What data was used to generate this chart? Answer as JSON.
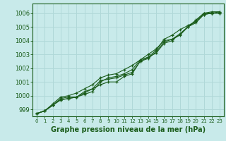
{
  "title": "Graphe pression niveau de la mer (hPa)",
  "bg_color": "#c8eaea",
  "grid_color": "#b0d8d8",
  "line_color": "#1a5c1a",
  "xlim": [
    -0.5,
    23.5
  ],
  "ylim": [
    998.5,
    1006.7
  ],
  "yticks": [
    999,
    1000,
    1001,
    1002,
    1003,
    1004,
    1005,
    1006
  ],
  "xticks": [
    0,
    1,
    2,
    3,
    4,
    5,
    6,
    7,
    8,
    9,
    10,
    11,
    12,
    13,
    14,
    15,
    16,
    17,
    18,
    19,
    20,
    21,
    22,
    23
  ],
  "series": [
    [
      998.7,
      998.9,
      999.3,
      999.8,
      999.9,
      999.9,
      1000.1,
      1000.3,
      1001.0,
      1001.3,
      1001.4,
      1001.6,
      1001.9,
      1002.6,
      1003.0,
      1003.4,
      1004.0,
      1004.1,
      1004.5,
      1005.0,
      1005.5,
      1006.0,
      1006.0,
      1006.0
    ],
    [
      998.7,
      998.9,
      999.4,
      999.9,
      1000.0,
      1000.2,
      1000.5,
      1000.8,
      1001.3,
      1001.5,
      1001.6,
      1001.9,
      1002.2,
      1002.6,
      1002.8,
      1003.3,
      1004.1,
      1004.4,
      1004.8,
      1005.1,
      1005.4,
      1006.0,
      1006.1,
      1006.1
    ],
    [
      998.7,
      998.9,
      999.3,
      999.7,
      999.8,
      999.9,
      1000.3,
      1000.5,
      1001.1,
      1001.2,
      1001.3,
      1001.5,
      1001.7,
      1002.5,
      1002.7,
      1003.2,
      1003.9,
      1004.1,
      1004.4,
      1005.0,
      1005.4,
      1005.9,
      1006.0,
      1006.1
    ],
    [
      998.7,
      998.9,
      999.3,
      999.7,
      999.8,
      999.9,
      1000.2,
      1000.5,
      1000.8,
      1001.0,
      1001.0,
      1001.4,
      1001.6,
      1002.5,
      1002.8,
      1003.1,
      1003.8,
      1004.0,
      1004.5,
      1005.0,
      1005.3,
      1005.9,
      1006.0,
      1006.0
    ]
  ],
  "ylabel_fontsize": 6,
  "xlabel_fontsize": 7,
  "tick_labelsize": 5.5
}
